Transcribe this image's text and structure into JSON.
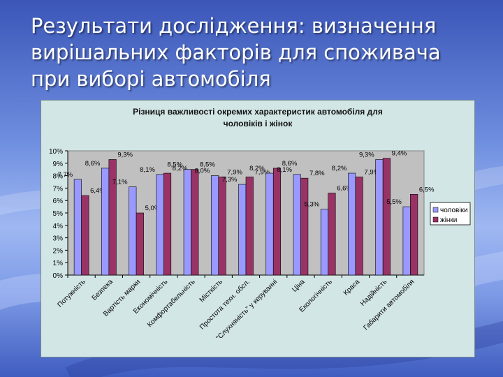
{
  "slide": {
    "title_lines": [
      "Результати дослідження: визначення",
      "вирішальних факторів для споживача",
      "при виборі автомобіля"
    ]
  },
  "chart_data": {
    "type": "bar",
    "title_lines": [
      "Різниця важливості окремих характеристик автомобіля для",
      "чоловіків і жінок"
    ],
    "categories": [
      "Потужність",
      "Безпека",
      "Вартість марки",
      "Економічність",
      "Комфортабельність",
      "Місткість",
      "Простота техн. обсл.",
      "\"Слухняність\" у керуванні",
      "Ціна",
      "Екологічність",
      "Краса",
      "Надійність",
      "Габарити автомобіля"
    ],
    "series": [
      {
        "name": "чоловіки",
        "color": "#9999ff",
        "values": [
          7.7,
          8.6,
          7.1,
          8.1,
          8.5,
          8.0,
          7.3,
          8.2,
          8.1,
          5.3,
          8.2,
          9.3,
          5.5
        ]
      },
      {
        "name": "жінки",
        "color": "#993366",
        "values": [
          6.4,
          9.3,
          5.0,
          8.2,
          8.5,
          7.9,
          7.9,
          8.6,
          7.8,
          6.6,
          7.9,
          9.4,
          6.5
        ]
      }
    ],
    "data_labels": [
      [
        "7,7%",
        "6,4%"
      ],
      [
        "8,6%",
        "9,3%"
      ],
      [
        "7,1%",
        "5,0%"
      ],
      [
        "8,1%",
        "8,2%"
      ],
      [
        "8,5%",
        "8,5%"
      ],
      [
        "8,0%",
        "7,9%"
      ],
      [
        "7,3%",
        "7,9%"
      ],
      [
        "8,2%",
        "8,6%"
      ],
      [
        "8,1%",
        "7,8%"
      ],
      [
        "5,3%",
        "6,6%"
      ],
      [
        "8,2%",
        "7,9%"
      ],
      [
        "9,3%",
        "9,4%"
      ],
      [
        "5,5%",
        "6,5%"
      ]
    ],
    "y_ticks": [
      "0%",
      "1%",
      "2%",
      "3%",
      "4%",
      "5%",
      "6%",
      "7%",
      "8%",
      "9%",
      "10%"
    ],
    "ylim": [
      0,
      10
    ],
    "legend": {
      "position": "right",
      "entries": [
        "чоловіки",
        "жінки"
      ]
    },
    "plot_background": "#c0c0c0",
    "grid": false
  }
}
